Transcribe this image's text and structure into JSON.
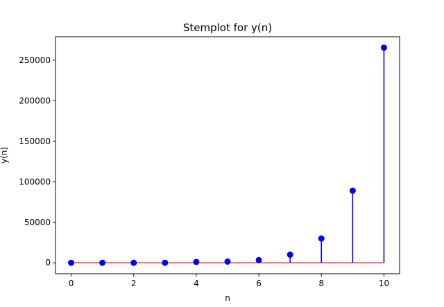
{
  "chart_data": {
    "type": "stem",
    "title": "Stemplot for y(n)",
    "xlabel": "n",
    "ylabel": "y(n)",
    "x": [
      0,
      1,
      2,
      3,
      4,
      5,
      6,
      7,
      8,
      9,
      10
    ],
    "y": [
      0,
      0,
      0,
      0,
      1000,
      1500,
      3300,
      10000,
      30000,
      89000,
      265500
    ],
    "xlim": [
      -0.5,
      10.5
    ],
    "ylim": [
      -13500,
      279000
    ],
    "xticks": [
      0,
      2,
      4,
      6,
      8,
      10
    ],
    "yticks": [
      0,
      50000,
      100000,
      150000,
      200000,
      250000
    ],
    "grid": false,
    "colors": {
      "stem": "#0000ff",
      "marker": "#0000ff"
    }
  }
}
